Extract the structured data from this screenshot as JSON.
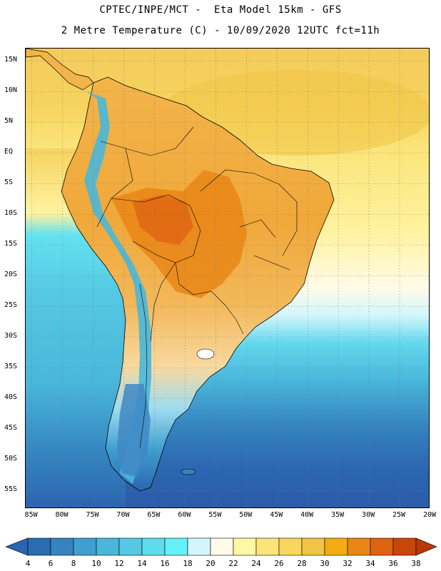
{
  "title": {
    "line1": "CPTEC/INPE/MCT -  Eta Model 15km - GFS",
    "line2": "2 Metre Temperature (C) - 10/09/2020 12UTC fct=11h"
  },
  "map": {
    "lat_range": [
      -58,
      17
    ],
    "lon_range": [
      -86,
      -20
    ],
    "lat_ticks": [
      "15N",
      "10N",
      "5N",
      "EQ",
      "5S",
      "10S",
      "15S",
      "20S",
      "25S",
      "30S",
      "35S",
      "40S",
      "45S",
      "50S",
      "55S"
    ],
    "lon_ticks": [
      "85W",
      "80W",
      "75W",
      "70W",
      "65W",
      "60W",
      "55W",
      "50W",
      "45W",
      "40W",
      "35W",
      "30W",
      "25W",
      "20W"
    ],
    "grid": "dotted"
  },
  "colorbar": {
    "labels": [
      "4",
      "6",
      "8",
      "10",
      "12",
      "14",
      "16",
      "18",
      "20",
      "22",
      "24",
      "26",
      "28",
      "30",
      "32",
      "34",
      "36",
      "38"
    ],
    "colors": [
      "#2b6cb0",
      "#3584c0",
      "#3f9fcf",
      "#49b7da",
      "#55c9e3",
      "#5fdcec",
      "#64f2f8",
      "#d2f6fb",
      "#fffbe8",
      "#fff7a4",
      "#fbe57a",
      "#f8d660",
      "#f1c446",
      "#f3ad12",
      "#e98616",
      "#de6210",
      "#c84608"
    ],
    "left_extend_color": "#2b64b0",
    "right_extend_color": "#b8380a"
  },
  "background_colors": {
    "north_warm": "#f4cb5c",
    "north_light": "#fbe57a",
    "mid_ocean": "#49b7da",
    "south_ocean": "#2b64b0",
    "land_warm": "#f0a83a",
    "land_hot": "#e07a2a",
    "andes_cold": "#3f87c5"
  }
}
